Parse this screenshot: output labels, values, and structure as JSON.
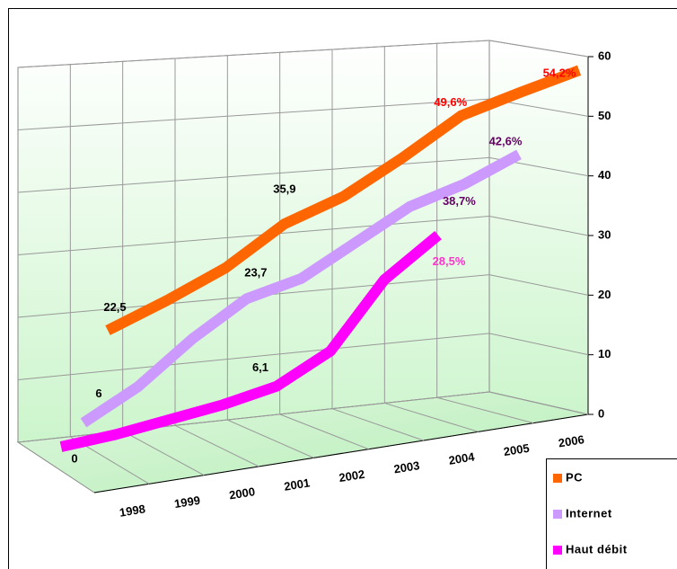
{
  "chart_data": {
    "type": "line3d",
    "categories": [
      "1998",
      "1999",
      "2000",
      "2001",
      "2002",
      "2003",
      "2004",
      "2005",
      "2006"
    ],
    "series": [
      {
        "name": "PC",
        "color": "#ff6600",
        "label_color": "#ff0000",
        "values": [
          22.5,
          26,
          30,
          35.9,
          39,
          44,
          49.6,
          52,
          54.2
        ],
        "value_labels": [
          "22,5",
          null,
          null,
          "35,9",
          null,
          null,
          "49,6%",
          null,
          "54,2%"
        ]
      },
      {
        "name": "Internet",
        "color": "#cc99ff",
        "label_color": "#660066",
        "values": [
          6,
          11,
          18,
          23.7,
          26,
          31,
          36,
          38.7,
          42.6
        ],
        "value_labels": [
          "6",
          null,
          null,
          "23,7",
          null,
          null,
          null,
          "38,7%",
          "42,6%"
        ]
      },
      {
        "name": "Haut débit",
        "color": "#ff00ff",
        "label_color": "#ff33cc",
        "values": [
          0,
          1,
          2.5,
          4,
          6.1,
          11,
          22,
          28.5,
          null
        ],
        "value_labels": [
          "0",
          null,
          null,
          null,
          "6,1",
          null,
          null,
          "28,5%",
          null
        ]
      }
    ],
    "ylim": [
      0,
      60
    ],
    "yticks": [
      0,
      10,
      20,
      30,
      40,
      50,
      60
    ],
    "grid": true,
    "legend": "bottom-right"
  }
}
